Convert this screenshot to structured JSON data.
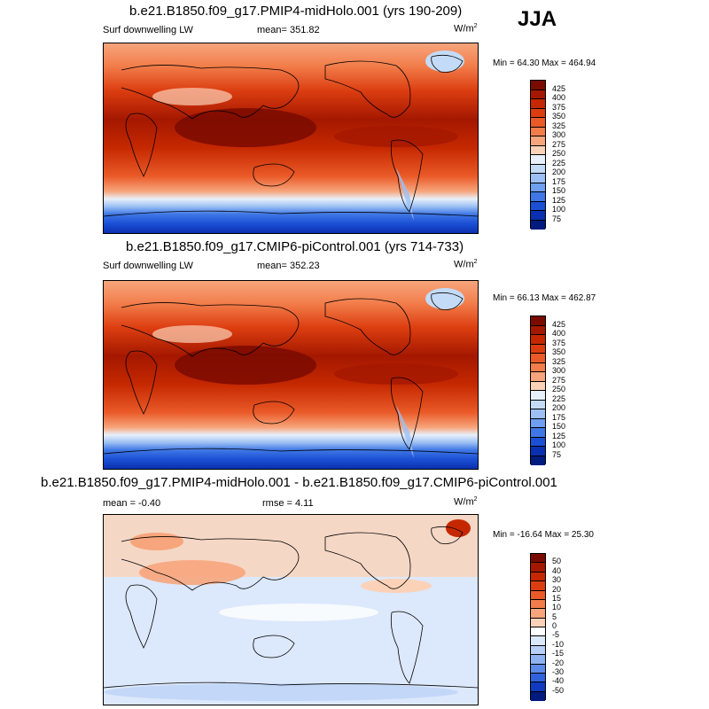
{
  "season": "JJA",
  "panels": [
    {
      "title": "b.e21.B1850.f09_g17.PMIP4-midHolo.001 (yrs 190-209)",
      "variable": "Surf downwelling LW",
      "mean_label": "mean= 351.82",
      "units": "W/m",
      "units_sup": "2",
      "minmax": "Min =  64.30 Max = 464.94"
    },
    {
      "title": "b.e21.B1850.f09_g17.CMIP6-piControl.001 (yrs 714-733)",
      "variable": "Surf downwelling LW",
      "mean_label": "mean= 352.23",
      "units": "W/m",
      "units_sup": "2",
      "minmax": "Min =  66.13 Max = 462.87"
    },
    {
      "title": "b.e21.B1850.f09_g17.PMIP4-midHolo.001 - b.e21.B1850.f09_g17.CMIP6-piControl.001",
      "mean_label": "mean =  -0.40",
      "rmse_label": "rmse =   4.11",
      "units": "W/m",
      "units_sup": "2",
      "minmax": "Min = -16.64 Max =  25.30"
    }
  ],
  "colorbar_abs": {
    "labels": [
      "425",
      "400",
      "375",
      "350",
      "325",
      "300",
      "275",
      "250",
      "225",
      "200",
      "175",
      "150",
      "125",
      "100",
      "75"
    ],
    "colors": [
      "#7a0b00",
      "#a41800",
      "#c52800",
      "#dc3d10",
      "#ea5a28",
      "#f27d4a",
      "#f7a57c",
      "#fbd2b8",
      "#e8f0fb",
      "#c4dbf7",
      "#9cc0f4",
      "#6e9ff0",
      "#3f78e6",
      "#1b4fd4",
      "#0a2fb0",
      "#011a80"
    ]
  },
  "colorbar_diff": {
    "labels": [
      "50",
      "40",
      "30",
      "20",
      "15",
      "10",
      "5",
      "0",
      "-5",
      "-10",
      "-15",
      "-20",
      "-30",
      "-40",
      "-50"
    ],
    "colors": [
      "#7a0b00",
      "#a41800",
      "#c52800",
      "#dc3d10",
      "#ea5a28",
      "#f27d4a",
      "#f7a57c",
      "#fbd2b8",
      "#ffffff",
      "#dce8fb",
      "#b8d0f6",
      "#8fb2f1",
      "#5c8ae9",
      "#2f62dc",
      "#0f3bbf",
      "#011a80"
    ]
  }
}
